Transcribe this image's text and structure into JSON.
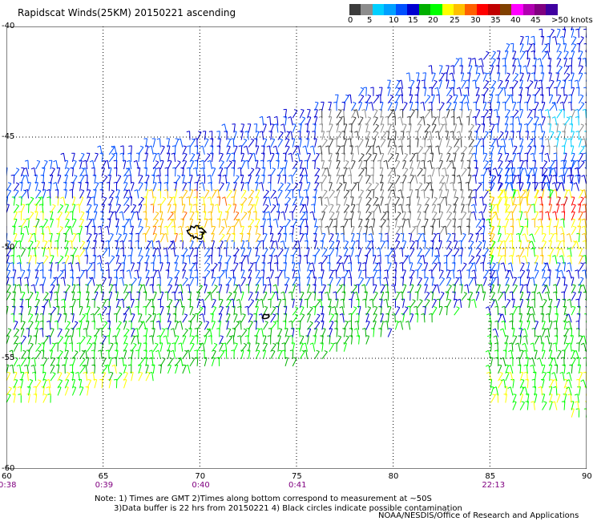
{
  "title": "Rapidscat Winds(25KM) 20150221 ascending",
  "colorbar": {
    "colors": [
      "#3c3c3c",
      "#8c8c8c",
      "#00cfff",
      "#00a0ff",
      "#0050ff",
      "#0000d0",
      "#00b000",
      "#00ff00",
      "#ffff00",
      "#ffc000",
      "#ff6000",
      "#ff0000",
      "#c00000",
      "#804000",
      "#ff00ff",
      "#b000b0",
      "#800080",
      "#4000a0"
    ],
    "labels": [
      "0",
      "5",
      "10",
      "15",
      "20",
      "25",
      "30",
      "35",
      "40",
      "45",
      ">50 knots"
    ]
  },
  "map": {
    "lat_ticks": [
      "-40",
      "-45",
      "-50",
      "-55",
      "-60"
    ],
    "lon_ticks": [
      "60",
      "65",
      "70",
      "75",
      "80",
      "85",
      "90"
    ],
    "time_labels": [
      {
        "lon": 60,
        "text": "0:38"
      },
      {
        "lon": 65,
        "text": "0:39"
      },
      {
        "lon": 70,
        "text": "0:40"
      },
      {
        "lon": 75,
        "text": "0:41"
      },
      {
        "lon": 85,
        "text": "22:13"
      }
    ],
    "lon_range": [
      60,
      90
    ],
    "lat_range": [
      -60,
      -40
    ],
    "gridlines": "dotted"
  },
  "notes": [
    "Note: 1) Times are GMT 2)Times along bottom correspond to measurement at ~50S",
    "3)Data buffer is 22 hrs from 20150221 4) Black circles indicate possible contamination"
  ],
  "credit": "NOAA/NESDIS/Office of Research and Applications"
}
